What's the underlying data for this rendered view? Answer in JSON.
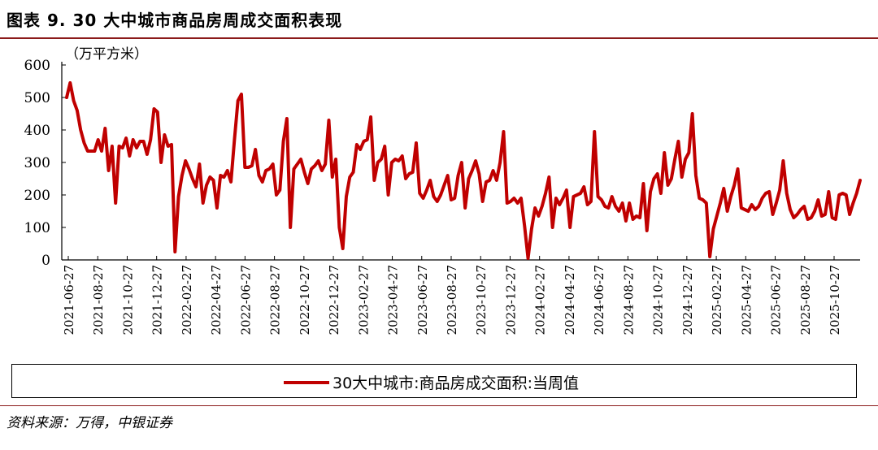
{
  "title": "图表 9. 30 大中城市商品房周成交面积表现",
  "source": "资料来源：万得，中银证券",
  "chart_data": {
    "type": "line",
    "unit_label": "（万平方米）",
    "ylim": [
      0,
      600
    ],
    "yticks": [
      0,
      100,
      200,
      300,
      400,
      500,
      600
    ],
    "xtick_labels": [
      "2021-06-27",
      "2021-08-27",
      "2021-10-27",
      "2021-12-27",
      "2022-02-27",
      "2022-04-27",
      "2022-06-27",
      "2022-08-27",
      "2022-10-27",
      "2022-12-27",
      "2023-02-27",
      "2023-04-27",
      "2023-06-27",
      "2023-08-27",
      "2023-10-27",
      "2023-12-27",
      "2024-02-27",
      "2024-04-27",
      "2024-06-27",
      "2024-08-27",
      "2024-10-27",
      "2024-12-27",
      "2025-02-27",
      "2025-04-27",
      "2025-06-27",
      "2025-08-27",
      "2025-10-27"
    ],
    "legend_position": "bottom",
    "grid": false,
    "series": [
      {
        "name": "30大中城市:商品房成交面积:当周值",
        "color": "#c00000",
        "values": [
          500,
          545,
          490,
          460,
          400,
          360,
          335,
          335,
          335,
          370,
          335,
          405,
          275,
          350,
          175,
          350,
          345,
          375,
          320,
          370,
          345,
          365,
          365,
          325,
          370,
          465,
          455,
          300,
          385,
          350,
          355,
          25,
          195,
          260,
          305,
          280,
          250,
          225,
          295,
          175,
          230,
          255,
          245,
          160,
          260,
          255,
          275,
          240,
          370,
          490,
          510,
          285,
          285,
          290,
          340,
          260,
          240,
          275,
          280,
          295,
          200,
          215,
          365,
          435,
          100,
          280,
          295,
          310,
          270,
          235,
          280,
          290,
          305,
          275,
          295,
          430,
          255,
          310,
          100,
          35,
          195,
          255,
          270,
          355,
          340,
          365,
          370,
          440,
          245,
          300,
          310,
          350,
          200,
          300,
          310,
          305,
          320,
          250,
          265,
          270,
          360,
          205,
          190,
          215,
          245,
          195,
          180,
          200,
          230,
          260,
          185,
          190,
          260,
          300,
          160,
          250,
          275,
          305,
          265,
          180,
          240,
          245,
          275,
          245,
          300,
          395,
          175,
          180,
          190,
          175,
          190,
          105,
          5,
          95,
          160,
          135,
          165,
          205,
          255,
          100,
          190,
          170,
          190,
          215,
          100,
          195,
          200,
          205,
          225,
          170,
          180,
          395,
          195,
          185,
          165,
          160,
          195,
          165,
          150,
          175,
          120,
          175,
          125,
          135,
          130,
          235,
          90,
          210,
          250,
          265,
          205,
          330,
          230,
          250,
          310,
          365,
          255,
          310,
          330,
          450,
          260,
          190,
          185,
          175,
          10,
          95,
          135,
          175,
          220,
          150,
          195,
          230,
          280,
          160,
          155,
          150,
          170,
          155,
          165,
          190,
          205,
          210,
          140,
          175,
          215,
          305,
          205,
          155,
          130,
          140,
          155,
          165,
          125,
          130,
          150,
          185,
          135,
          140,
          210,
          130,
          125,
          200,
          205,
          200,
          140,
          175,
          205,
          245
        ]
      }
    ]
  }
}
